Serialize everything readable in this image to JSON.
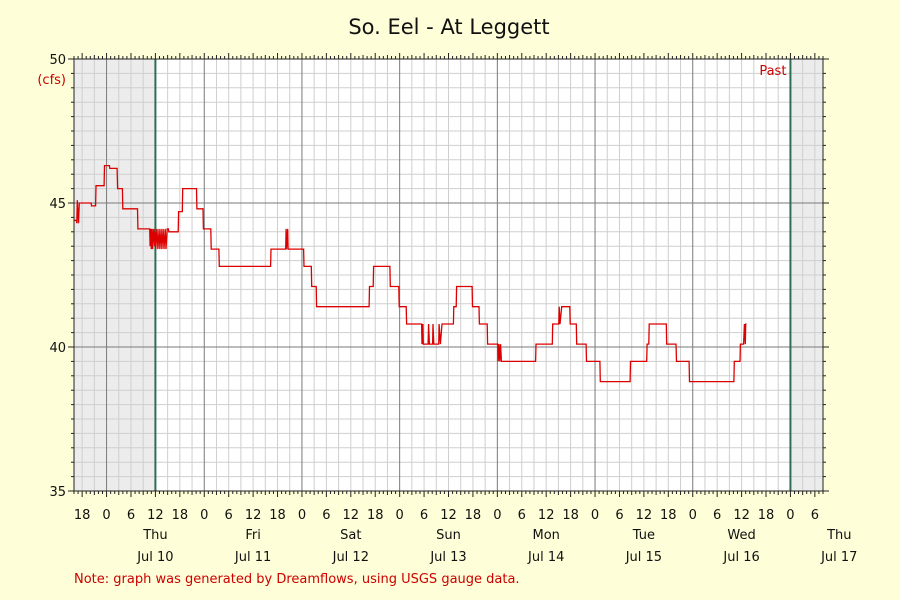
{
  "chart_data": {
    "type": "line",
    "title": "So. Eel - At Leggett",
    "ylabel": "(cfs)",
    "ylim": [
      35,
      50
    ],
    "yticks": [
      35,
      40,
      45,
      50
    ],
    "x_range_hours": [
      -8,
      176
    ],
    "x_unit": "hours from Jul 10 00:00",
    "hour_tick_labels": [
      "6",
      "12",
      "18",
      "0"
    ],
    "days": [
      {
        "weekday": "Thu",
        "date": "Jul 10"
      },
      {
        "weekday": "Fri",
        "date": "Jul 11"
      },
      {
        "weekday": "Sat",
        "date": "Jul 12"
      },
      {
        "weekday": "Sun",
        "date": "Jul 13"
      },
      {
        "weekday": "Mon",
        "date": "Jul 14"
      },
      {
        "weekday": "Tue",
        "date": "Jul 15"
      },
      {
        "weekday": "Wed",
        "date": "Jul 16"
      },
      {
        "weekday": "Thu",
        "date": "Jul 17"
      }
    ],
    "data_window_hours": [
      12,
      168
    ],
    "past_label": "Past",
    "grid": true,
    "line_color": "#dd0000",
    "series": [
      {
        "values_hours": [
          [
            -8,
            44.4
          ],
          [
            -7.4,
            44.4
          ],
          [
            -7.3,
            44.3
          ],
          [
            -7.2,
            45.1
          ],
          [
            -6.9,
            44.3
          ],
          [
            -6.7,
            45.0
          ],
          [
            -3.8,
            45.0
          ],
          [
            -3.7,
            44.9
          ],
          [
            -2.7,
            44.9
          ],
          [
            -2.6,
            45.6
          ],
          [
            -0.6,
            45.6
          ],
          [
            -0.5,
            46.3
          ],
          [
            0.7,
            46.3
          ],
          [
            0.8,
            46.2
          ],
          [
            2.6,
            46.2
          ],
          [
            2.7,
            45.5
          ],
          [
            3.9,
            45.5
          ],
          [
            4.0,
            44.8
          ],
          [
            7.6,
            44.8
          ],
          [
            7.7,
            44.1
          ],
          [
            10.6,
            44.1
          ],
          [
            10.7,
            43.5
          ],
          [
            10.9,
            44.1
          ],
          [
            11.0,
            43.4
          ],
          [
            11.2,
            44.1
          ],
          [
            11.3,
            43.4
          ],
          [
            11.6,
            44.1
          ],
          [
            11.8,
            43.5
          ],
          [
            12.0,
            44.0
          ],
          [
            12.1,
            43.4
          ],
          [
            12.4,
            44.1
          ],
          [
            12.6,
            43.4
          ],
          [
            12.9,
            44.1
          ],
          [
            13.1,
            43.4
          ],
          [
            13.4,
            44.1
          ],
          [
            13.6,
            43.4
          ],
          [
            13.9,
            44.1
          ],
          [
            14.1,
            43.4
          ],
          [
            14.4,
            44.1
          ],
          [
            14.6,
            43.4
          ],
          [
            14.9,
            44.1
          ],
          [
            15.2,
            44.1
          ],
          [
            15.3,
            44.0
          ],
          [
            17.6,
            44.0
          ],
          [
            17.7,
            44.7
          ],
          [
            18.6,
            44.7
          ],
          [
            18.7,
            45.5
          ],
          [
            22.1,
            45.5
          ],
          [
            22.2,
            44.8
          ],
          [
            23.7,
            44.8
          ],
          [
            23.8,
            44.1
          ],
          [
            25.6,
            44.1
          ],
          [
            25.7,
            43.4
          ],
          [
            27.6,
            43.4
          ],
          [
            27.7,
            42.8
          ],
          [
            40.3,
            42.8
          ],
          [
            40.4,
            43.4
          ],
          [
            44.0,
            43.4
          ],
          [
            44.1,
            44.1
          ],
          [
            44.2,
            43.4
          ],
          [
            44.5,
            44.1
          ],
          [
            44.6,
            43.4
          ],
          [
            48.4,
            43.4
          ],
          [
            48.5,
            42.8
          ],
          [
            50.3,
            42.8
          ],
          [
            50.4,
            42.1
          ],
          [
            51.5,
            42.1
          ],
          [
            51.6,
            41.4
          ],
          [
            64.5,
            41.4
          ],
          [
            64.6,
            42.1
          ],
          [
            65.5,
            42.1
          ],
          [
            65.6,
            42.8
          ],
          [
            69.6,
            42.8
          ],
          [
            69.7,
            42.1
          ],
          [
            71.8,
            42.1
          ],
          [
            71.9,
            41.4
          ],
          [
            73.6,
            41.4
          ],
          [
            73.7,
            40.8
          ],
          [
            77.4,
            40.8
          ],
          [
            77.5,
            40.1
          ],
          [
            77.7,
            40.8
          ],
          [
            77.8,
            40.1
          ],
          [
            79.0,
            40.1
          ],
          [
            79.1,
            40.8
          ],
          [
            79.3,
            40.1
          ],
          [
            80.1,
            40.1
          ],
          [
            80.2,
            40.8
          ],
          [
            80.4,
            40.1
          ],
          [
            81.6,
            40.1
          ],
          [
            81.7,
            40.8
          ],
          [
            82.0,
            40.1
          ],
          [
            82.4,
            40.8
          ],
          [
            85.2,
            40.8
          ],
          [
            85.3,
            41.4
          ],
          [
            85.9,
            41.4
          ],
          [
            86.0,
            42.1
          ],
          [
            89.8,
            42.1
          ],
          [
            89.9,
            41.4
          ],
          [
            91.5,
            41.4
          ],
          [
            91.6,
            40.8
          ],
          [
            93.5,
            40.8
          ],
          [
            93.6,
            40.1
          ],
          [
            96.1,
            40.1
          ],
          [
            96.2,
            39.5
          ],
          [
            96.4,
            40.1
          ],
          [
            96.6,
            39.5
          ],
          [
            96.8,
            40.1
          ],
          [
            97.0,
            39.5
          ],
          [
            105.4,
            39.5
          ],
          [
            105.5,
            40.1
          ],
          [
            109.5,
            40.1
          ],
          [
            109.6,
            40.8
          ],
          [
            111.1,
            40.8
          ],
          [
            111.2,
            41.4
          ],
          [
            111.4,
            40.8
          ],
          [
            111.8,
            41.4
          ],
          [
            113.8,
            41.4
          ],
          [
            113.9,
            40.8
          ],
          [
            115.4,
            40.8
          ],
          [
            115.5,
            40.1
          ],
          [
            117.8,
            40.1
          ],
          [
            117.9,
            39.5
          ],
          [
            121.2,
            39.5
          ],
          [
            121.3,
            38.8
          ],
          [
            128.6,
            38.8
          ],
          [
            128.7,
            39.5
          ],
          [
            132.7,
            39.5
          ],
          [
            132.8,
            40.1
          ],
          [
            133.2,
            40.1
          ],
          [
            133.3,
            40.8
          ],
          [
            137.5,
            40.8
          ],
          [
            137.6,
            40.1
          ],
          [
            139.9,
            40.1
          ],
          [
            140.0,
            39.5
          ],
          [
            143.1,
            39.5
          ],
          [
            143.2,
            38.8
          ],
          [
            154.1,
            38.8
          ],
          [
            154.2,
            39.5
          ],
          [
            155.6,
            39.5
          ],
          [
            155.7,
            40.1
          ],
          [
            156.5,
            40.1
          ],
          [
            156.7,
            40.8
          ],
          [
            156.9,
            40.1
          ],
          [
            157.0,
            40.8
          ],
          [
            157.2,
            40.8
          ]
        ]
      }
    ]
  },
  "note": "Note: graph was generated by Dreamflows, using USGS gauge data."
}
